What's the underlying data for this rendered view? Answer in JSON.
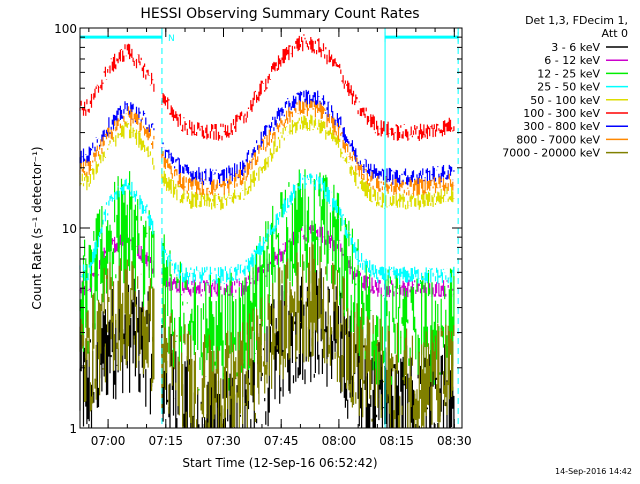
{
  "chart_data": {
    "type": "line",
    "title": "HESSI Observing Summary Count Rates",
    "xlabel": "Start Time (12-Sep-16 06:52:42)",
    "ylabel": "Count Rate (s⁻¹ detector⁻¹)",
    "y_scale": "log",
    "ylim": [
      1,
      100
    ],
    "y_ticks": [
      1,
      10,
      100
    ],
    "y_tick_labels": [
      "1",
      "10",
      "100"
    ],
    "xlim": [
      "06:52:42",
      "08:32:00"
    ],
    "x_ticks": [
      "07:00",
      "07:15",
      "07:30",
      "07:45",
      "08:00",
      "08:15",
      "08:30"
    ],
    "grid": false,
    "legend_position": "right",
    "legend_header": [
      "Det 1,3, FDecim 1,",
      "Att 0"
    ],
    "footer_date": "14-Sep-2016 14:42",
    "annotations": [
      {
        "type": "bar",
        "label": "N",
        "from": "06:52:42",
        "to": "07:14:00",
        "y": 90
      },
      {
        "type": "bar",
        "label": "",
        "from": "08:12:00",
        "to": "08:31:00",
        "y": 90
      }
    ],
    "vertical_markers": [
      "07:14:00",
      "08:12:00",
      "08:31:00"
    ],
    "x": [
      "06:55",
      "07:00",
      "07:05",
      "07:10",
      "07:15",
      "07:20",
      "07:25",
      "07:30",
      "07:35",
      "07:40",
      "07:45",
      "07:50",
      "07:55",
      "08:00",
      "08:05",
      "08:10",
      "08:15",
      "08:20",
      "08:25",
      "08:30"
    ],
    "series": [
      {
        "name": "3 - 6 keV",
        "color": "#000000",
        "values": [
          1.6,
          2.6,
          3.0,
          2.5,
          1.7,
          1.2,
          1.0,
          1.0,
          1.2,
          1.8,
          2.6,
          3.2,
          3.4,
          2.6,
          1.8,
          1.4,
          1.3,
          1.3,
          1.3,
          1.4
        ]
      },
      {
        "name": "6 - 12 keV",
        "color": "#cc00cc",
        "values": [
          5.0,
          8.0,
          9.0,
          7.0,
          5.5,
          5.0,
          5.0,
          5.0,
          5.0,
          6.0,
          7.5,
          9.5,
          9.5,
          8.0,
          5.5,
          5.0,
          5.0,
          5.0,
          5.0,
          5.0
        ]
      },
      {
        "name": "12 - 25 keV",
        "color": "#00ee00",
        "values": [
          4.5,
          8.5,
          10.0,
          7.5,
          4.5,
          3.2,
          3.0,
          3.0,
          3.2,
          5.0,
          8.0,
          10.5,
          10.5,
          8.0,
          4.5,
          3.2,
          3.2,
          3.2,
          3.2,
          3.2
        ]
      },
      {
        "name": "25 - 50 keV",
        "color": "#00ffff",
        "values": [
          6.0,
          13.0,
          17.0,
          12.0,
          7.0,
          5.8,
          5.8,
          5.8,
          6.0,
          8.0,
          12.0,
          17.0,
          17.0,
          12.0,
          7.0,
          5.8,
          5.8,
          5.8,
          5.8,
          5.8
        ]
      },
      {
        "name": "50 - 100 keV",
        "color": "#dddd00",
        "values": [
          17.0,
          26.0,
          32.0,
          25.0,
          17.0,
          14.0,
          13.5,
          13.5,
          15.0,
          20.0,
          28.0,
          34.0,
          33.0,
          26.0,
          17.0,
          14.0,
          13.5,
          13.5,
          14.0,
          15.0
        ]
      },
      {
        "name": "100 - 300 keV",
        "color": "#ff0000",
        "values": [
          40.0,
          62.0,
          78.0,
          60.0,
          42.0,
          32.0,
          30.0,
          30.0,
          35.0,
          50.0,
          70.0,
          85.0,
          80.0,
          62.0,
          40.0,
          32.0,
          30.0,
          30.0,
          31.0,
          33.0
        ]
      },
      {
        "name": "300 - 800 keV",
        "color": "#0000ff",
        "values": [
          23.0,
          32.0,
          40.0,
          34.0,
          24.0,
          19.0,
          18.0,
          18.0,
          20.0,
          28.0,
          38.0,
          45.0,
          44.0,
          34.0,
          22.0,
          18.5,
          18.0,
          18.0,
          18.5,
          19.0
        ]
      },
      {
        "name": "800 - 7000 keV",
        "color": "#ff8800",
        "values": [
          20.0,
          29.0,
          37.0,
          31.0,
          21.0,
          16.5,
          16.0,
          16.0,
          18.0,
          25.0,
          34.0,
          40.0,
          39.0,
          30.0,
          20.0,
          16.5,
          16.0,
          16.0,
          16.5,
          17.0
        ]
      },
      {
        "name": "7000 - 20000 keV",
        "color": "#808000",
        "values": [
          2.2,
          3.5,
          4.0,
          3.2,
          2.2,
          1.7,
          1.5,
          1.5,
          1.7,
          2.4,
          3.4,
          4.2,
          4.3,
          3.2,
          2.2,
          1.8,
          1.7,
          1.7,
          1.7,
          1.8
        ]
      }
    ]
  }
}
